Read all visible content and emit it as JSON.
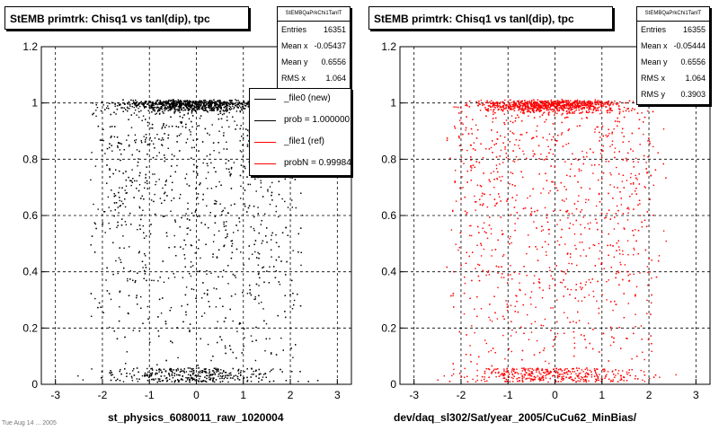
{
  "panels": [
    {
      "title": "StEMB primtrk: Chisq1 vs tanl(dip), tpc",
      "stats": {
        "name": "StEMBQaPrkChi1TanlT",
        "rows": [
          {
            "label": "Entries",
            "value": "16351"
          },
          {
            "label": "Mean x",
            "value": "-0.05437"
          },
          {
            "label": "Mean y",
            "value": "0.6556"
          },
          {
            "label": "RMS x",
            "value": "1.064"
          }
        ]
      },
      "xlabel": "st_physics_6080011_raw_1020004",
      "marker_color": "#000000"
    },
    {
      "title": "StEMB primtrk: Chisq1 vs tanl(dip), tpc",
      "stats": {
        "name": "StEMBQaPrkChi1TanlT",
        "rows": [
          {
            "label": "Entries",
            "value": "16355"
          },
          {
            "label": "Mean x",
            "value": "-0.05444"
          },
          {
            "label": "Mean y",
            "value": "0.6556"
          },
          {
            "label": "RMS x",
            "value": "1.064"
          },
          {
            "label": "RMS y",
            "value": "0.3903"
          }
        ]
      },
      "xlabel": "dev/daq_sl302/Sat/year_2005/CuCu62_MinBias/",
      "marker_color": "#ff0000"
    }
  ],
  "legend": [
    {
      "label": "_file0 (new)",
      "color": "#000000"
    },
    {
      "label": "prob = 1.000000",
      "color": "#000000"
    },
    {
      "label": "_file1 (ref)",
      "color": "#ff0000"
    },
    {
      "label": "probN = 0.99984",
      "color": "#ff0000"
    }
  ],
  "footer_note": "Tue Aug 14 ... 2005",
  "chart_data": [
    {
      "type": "scatter",
      "title": "StEMB primtrk: Chisq1 vs tanl(dip), tpc",
      "xlabel": "st_physics_6080011_raw_1020004",
      "ylabel": "",
      "xlim": [
        -3.3,
        3.3
      ],
      "ylim": [
        0,
        1.2
      ],
      "xticks": [
        -3,
        -2,
        -1,
        0,
        1,
        2,
        3
      ],
      "yticks": [
        0,
        0.2,
        0.4,
        0.6,
        0.8,
        1,
        1.2
      ],
      "grid": true,
      "series": [
        {
          "name": "_file0 (new)",
          "color": "#000000"
        }
      ],
      "entries": 16351,
      "mean_x": -0.05437,
      "mean_y": 0.6556,
      "rms_x": 1.064,
      "dense_bands_y": [
        0.05,
        1.0
      ],
      "x_extent": [
        -2.9,
        2.6
      ]
    },
    {
      "type": "scatter",
      "title": "StEMB primtrk: Chisq1 vs tanl(dip), tpc",
      "xlabel": "dev/daq_sl302/Sat/year_2005/CuCu62_MinBias/",
      "ylabel": "",
      "xlim": [
        -3.3,
        3.3
      ],
      "ylim": [
        0,
        1.2
      ],
      "xticks": [
        -3,
        -2,
        -1,
        0,
        1,
        2,
        3
      ],
      "yticks": [
        0,
        0.2,
        0.4,
        0.6,
        0.8,
        1,
        1.2
      ],
      "grid": true,
      "series": [
        {
          "name": "_file1 (ref)",
          "color": "#ff0000"
        }
      ],
      "entries": 16355,
      "mean_x": -0.05444,
      "mean_y": 0.6556,
      "rms_x": 1.064,
      "rms_y": 0.3903,
      "dense_bands_y": [
        0.05,
        1.0
      ],
      "x_extent": [
        -2.9,
        2.6
      ]
    }
  ]
}
